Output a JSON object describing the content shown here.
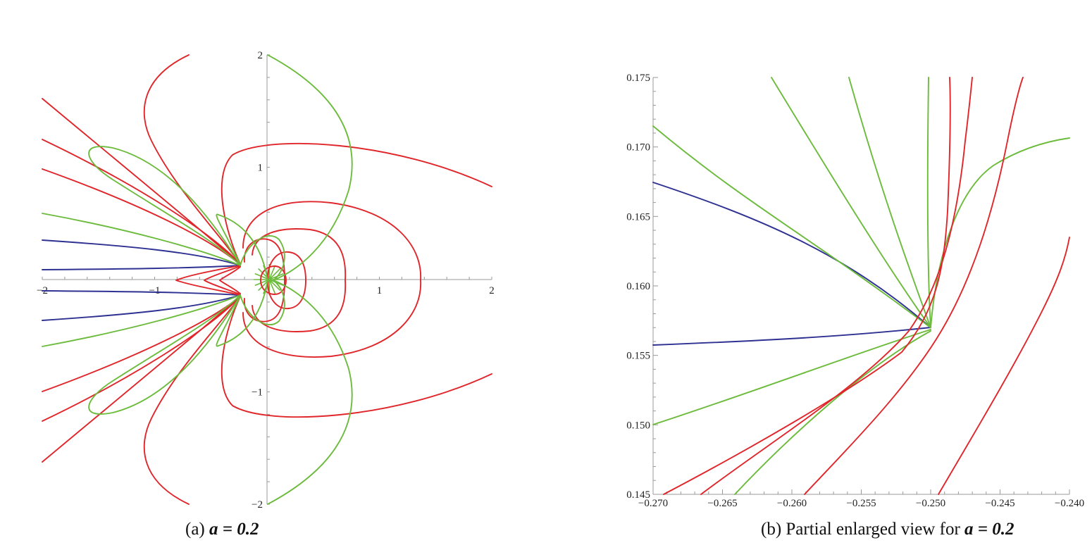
{
  "chart_data": [
    {
      "type": "line",
      "title": "",
      "xlabel": "",
      "ylabel": "",
      "xlim": [
        -2,
        2
      ],
      "ylim": [
        -2,
        2
      ],
      "axes_at_origin": true,
      "x_tick_labels": [
        "−2",
        "−1",
        "1",
        "2"
      ],
      "x_ticks": [
        -2,
        -1,
        1,
        2
      ],
      "y_tick_labels": [
        "2",
        "1",
        "−1",
        "−2"
      ],
      "y_ticks": [
        2,
        1,
        -1,
        -2
      ],
      "series_colors": {
        "red": "#e0262b",
        "green": "#6cbb3c",
        "blue": "#2e3192"
      },
      "caption": {
        "prefix": "(a) ",
        "math": "a = 0.2"
      }
    },
    {
      "type": "line",
      "title": "",
      "xlabel": "",
      "ylabel": "",
      "xlim": [
        -0.27,
        -0.24
      ],
      "ylim": [
        0.145,
        0.175
      ],
      "x_tick_labels": [
        "−0.270",
        "−0.265",
        "−0.260",
        "−0.255",
        "−0.250",
        "−0.245",
        "−0.240"
      ],
      "x_ticks": [
        -0.27,
        -0.265,
        -0.26,
        -0.255,
        -0.25,
        -0.245,
        -0.24
      ],
      "y_tick_labels": [
        "0.175",
        "0.170",
        "0.165",
        "0.160",
        "0.155",
        "0.150",
        "0.145"
      ],
      "y_ticks": [
        0.175,
        0.17,
        0.165,
        0.16,
        0.155,
        0.15,
        0.145
      ],
      "series_colors": {
        "red": "#e0262b",
        "green": "#6cbb3c",
        "blue": "#2e3192"
      },
      "caption": {
        "prefix": "(b)  Partial enlarged view for ",
        "math": "a = 0.2"
      }
    }
  ]
}
